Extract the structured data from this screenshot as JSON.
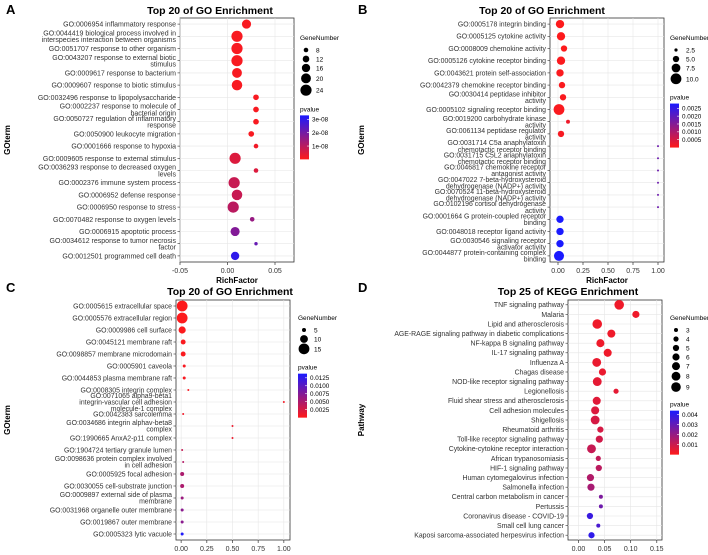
{
  "chart_data": [
    {
      "panel": "A",
      "type": "scatter",
      "title": "Top 20 of GO Enrichment",
      "xlabel": "RichFactor",
      "ylabel": "GOterm",
      "xlim": [
        -0.05,
        0.07
      ],
      "xticks": [
        "-0.05",
        "0.00",
        "0.05"
      ],
      "xtick_values": [
        -0.05,
        0.0,
        0.05
      ],
      "terms": [
        "GO:0006954 inflammatory response",
        "GO:0044419 biological process involved in interspecies interaction between organisms",
        "GO:0051707 response to other organism",
        "GO:0043207 response to external biotic stimulus",
        "GO:0009617 response to bacterium",
        "GO:0009607 response to biotic stimulus",
        "GO:0032496 response to lipopolysaccharide",
        "GO:0002237 response to molecule of bacterial origin",
        "GO:0050727 regulation of inflammatory response",
        "GO:0050900 leukocyte migration",
        "GO:0001666 response to hypoxia",
        "GO:0009605 response to external stimulus",
        "GO:0036293 response to decreased oxygen levels",
        "GO:0002376 immune system process",
        "GO:0006952 defense response",
        "GO:0006950 response to stress",
        "GO:0070482 response to oxygen levels",
        "GO:0006915 apoptotic process",
        "GO:0034612 response to tumor necrosis factor",
        "GO:0012501 programmed cell death"
      ],
      "rich_factor": [
        0.02,
        0.01,
        0.01,
        0.01,
        0.01,
        0.01,
        0.03,
        0.03,
        0.03,
        0.025,
        0.03,
        0.008,
        0.03,
        0.007,
        0.01,
        0.006,
        0.026,
        0.008,
        0.03,
        0.008
      ],
      "gene_number": [
        18,
        24,
        24,
        24,
        20,
        22,
        10,
        10,
        10,
        10,
        8,
        24,
        8,
        24,
        22,
        24,
        8,
        18,
        6,
        16
      ],
      "pvalue": [
        1e-09,
        1e-09,
        1e-09,
        1e-09,
        1e-09,
        1e-09,
        1e-09,
        1e-09,
        1e-09,
        1e-09,
        2e-09,
        5e-09,
        5e-09,
        8e-09,
        8e-09,
        1e-08,
        1.5e-08,
        1.8e-08,
        2.2e-08,
        3e-08
      ],
      "size_legend": {
        "title": "GeneNumber",
        "labels": [
          "8",
          "12",
          "16",
          "20",
          "24"
        ],
        "values": [
          8,
          12,
          16,
          20,
          24
        ]
      },
      "color_legend": {
        "title": "pvalue",
        "labels": [
          "3e-08",
          "2e-08",
          "1e-08"
        ],
        "values": [
          3e-08,
          2e-08,
          1e-08
        ],
        "range": [
          0,
          3.3e-08
        ]
      }
    },
    {
      "panel": "B",
      "type": "scatter",
      "title": "Top 20 of GO Enrichment",
      "xlabel": "RichFactor",
      "ylabel": "GOterm",
      "xlim": [
        -0.08,
        1.06
      ],
      "xticks": [
        "0.00",
        "0.25",
        "0.50",
        "0.75",
        "1.00"
      ],
      "xtick_values": [
        0,
        0.25,
        0.5,
        0.75,
        1.0
      ],
      "terms": [
        "GO:0005178 integrin binding",
        "GO:0005125 cytokine activity",
        "GO:0008009 chemokine activity",
        "GO:0005126 cytokine receptor binding",
        "GO:0043621 protein self-association",
        "GO:0042379 chemokine receptor binding",
        "GO:0030414 peptidase inhibitor activity",
        "GO:0005102 signaling receptor binding",
        "GO:0019200 carbohydrate kinase activity",
        "GO:0061134 peptidase regulator activity",
        "GO:0031714 C5a anaphylatoxin chemotactic receptor binding",
        "GO:0031715 C5L2 anaphylatoxin chemotactic receptor binding",
        "GO:0046817 chemokine receptor antagonist activity",
        "GO:0047022 7-beta-hydroxysteroid dehydrogenase (NADP+) activity",
        "GO:0070524 11-beta-hydroxysteroid dehydrogenase (NADP+) activity",
        "GO:0102196 cortisol dehydrogenase activity",
        "GO:0001664 G protein-coupled receptor binding",
        "GO:0048018 receptor ligand activity",
        "GO:0030546 signaling receptor activator activity",
        "GO:0044877 protein-containing complex binding"
      ],
      "rich_factor": [
        0.02,
        0.03,
        0.06,
        0.03,
        0.02,
        0.04,
        0.05,
        0.01,
        0.1,
        0.03,
        1.0,
        1.0,
        1.0,
        1.0,
        1.0,
        1.0,
        0.02,
        0.02,
        0.02,
        0.01
      ],
      "gene_number": [
        7,
        7,
        5,
        7,
        6,
        5,
        5,
        10,
        3,
        5,
        1,
        1,
        1,
        1,
        1,
        1,
        6,
        6,
        6,
        9
      ],
      "pvalue": [
        2e-05,
        2e-05,
        3e-05,
        5e-05,
        5e-05,
        6e-05,
        6e-05,
        6e-05,
        0.0002,
        0.0001,
        0.0018,
        0.0018,
        0.0018,
        0.0018,
        0.0018,
        0.0018,
        0.0028,
        0.0028,
        0.0028,
        0.0028
      ],
      "size_legend": {
        "title": "GeneNumber",
        "labels": [
          "2.5",
          "5.0",
          "7.5",
          "10.0"
        ],
        "values": [
          2.5,
          5.0,
          7.5,
          10.0
        ]
      },
      "color_legend": {
        "title": "pvalue",
        "labels": [
          "0.0025",
          "0.0020",
          "0.0015",
          "0.0010",
          "0.0005"
        ],
        "values": [
          0.0025,
          0.002,
          0.0015,
          0.001,
          0.0005
        ],
        "range": [
          0,
          0.0028
        ]
      }
    },
    {
      "panel": "C",
      "type": "scatter",
      "title": "Top 20 of GO Enrichment",
      "xlabel": "RichFactor",
      "ylabel": "GOterm",
      "xlim": [
        -0.05,
        1.06
      ],
      "xticks": [
        "0.00",
        "0.25",
        "0.50",
        "0.75",
        "1.00"
      ],
      "xtick_values": [
        0,
        0.25,
        0.5,
        0.75,
        1.0
      ],
      "terms": [
        "GO:0005615 extracellular space",
        "GO:0005576 extracellular region",
        "GO:0009986 cell surface",
        "GO:0045121 membrane raft",
        "GO:0098857 membrane microdomain",
        "GO:0005901 caveola",
        "GO:0044853 plasma membrane raft",
        "GO:0008305 integrin complex",
        "GO:0071065 alpha9-beta1 integrin-vascular cell adhesion molecule-1 complex",
        "GO:0042383 sarcolemma",
        "GO:0034686 integrin alphav-beta8 complex",
        "GO:1990665 AnxA2-p11 complex",
        "GO:1904724 tertiary granule lumen",
        "GO:0098636 protein complex involved in cell adhesion",
        "GO:0005925 focal adhesion",
        "GO:0030055 cell-substrate junction",
        "GO:0009897 external side of plasma membrane",
        "GO:0031968 organelle outer membrane",
        "GO:0019867 outer membrane",
        "GO:0005323 lytic vacuole"
      ],
      "rich_factor": [
        0.01,
        0.01,
        0.01,
        0.02,
        0.02,
        0.03,
        0.03,
        0.07,
        1.0,
        0.02,
        0.5,
        0.5,
        0.01,
        0.02,
        0.01,
        0.01,
        0.01,
        0.01,
        0.01,
        0.01
      ],
      "gene_number": [
        15,
        15,
        9,
        6,
        6,
        4,
        4,
        2,
        1,
        3,
        1,
        1,
        3,
        2,
        5,
        5,
        4,
        4,
        4,
        4
      ],
      "pvalue": [
        0.0001,
        0.0001,
        0.0002,
        0.0003,
        0.0003,
        0.0004,
        0.0004,
        0.0005,
        0.0008,
        0.0009,
        0.0012,
        0.0012,
        0.0035,
        0.0045,
        0.005,
        0.005,
        0.006,
        0.007,
        0.007,
        0.0135
      ],
      "size_legend": {
        "title": "GeneNumber",
        "labels": [
          "5",
          "10",
          "15"
        ],
        "values": [
          5,
          10,
          15
        ]
      },
      "color_legend": {
        "title": "pvalue",
        "labels": [
          "0.0125",
          "0.0100",
          "0.0075",
          "0.0050",
          "0.0025"
        ],
        "values": [
          0.0125,
          0.01,
          0.0075,
          0.005,
          0.0025
        ],
        "range": [
          0,
          0.0138
        ]
      }
    },
    {
      "panel": "D",
      "type": "scatter",
      "title": "Top 25 of KEGG Enrichment",
      "xlabel": "RichFactor",
      "ylabel": "Pathway",
      "xlim": [
        -0.02,
        0.16
      ],
      "xticks": [
        "0.00",
        "0.05",
        "0.10",
        "0.15"
      ],
      "xtick_values": [
        0,
        0.05,
        0.1,
        0.15
      ],
      "terms": [
        "TNF signaling pathway",
        "Malaria",
        "Lipid and atherosclerosis",
        "AGE-RAGE signaling pathway in diabetic complications",
        "NF-kappa B signaling pathway",
        "IL-17 signaling pathway",
        "Influenza A",
        "Chagas disease",
        "NOD-like receptor signaling pathway",
        "Legionellosis",
        "Fluid shear stress and atherosclerosis",
        "Cell adhesion molecules",
        "Shigellosis",
        "Rheumatoid arthritis",
        "Toll-like receptor signaling pathway",
        "Cytokine-cytokine receptor interaction",
        "African trypanosomiasis",
        "HIF-1 signaling pathway",
        "Human cytomegalovirus infection",
        "Salmonella infection",
        "Central carbon metabolism in cancer",
        "Pertussis",
        "Coronavirus disease - COVID-19",
        "Small cell lung cancer",
        "Kaposi sarcoma-associated herpesvirus infection"
      ],
      "rich_factor": [
        0.078,
        0.11,
        0.036,
        0.063,
        0.042,
        0.056,
        0.035,
        0.046,
        0.036,
        0.072,
        0.035,
        0.032,
        0.032,
        0.042,
        0.04,
        0.025,
        0.038,
        0.039,
        0.023,
        0.024,
        0.043,
        0.043,
        0.022,
        0.038,
        0.025
      ],
      "gene_number": [
        9,
        6,
        9,
        7,
        7,
        7,
        8,
        6,
        8,
        4,
        7,
        7,
        8,
        5,
        6,
        8,
        4,
        5,
        6,
        6,
        3,
        3,
        5,
        3,
        5
      ],
      "pvalue": [
        0.0003,
        0.0003,
        0.0003,
        0.0003,
        0.0003,
        0.0003,
        0.0004,
        0.0004,
        0.0005,
        0.0005,
        0.0006,
        0.0007,
        0.0008,
        0.0008,
        0.0009,
        0.0011,
        0.0012,
        0.0013,
        0.0015,
        0.0017,
        0.0025,
        0.0028,
        0.0038,
        0.0035,
        0.004
      ],
      "size_legend": {
        "title": "GeneNumber",
        "labels": [
          "3",
          "4",
          "5",
          "6",
          "7",
          "8",
          "9"
        ],
        "values": [
          3,
          4,
          5,
          6,
          7,
          8,
          9
        ]
      },
      "color_legend": {
        "title": "pvalue",
        "labels": [
          "0.004",
          "0.003",
          "0.002",
          "0.001"
        ],
        "values": [
          0.004,
          0.003,
          0.002,
          0.001
        ],
        "range": [
          0,
          0.0044
        ]
      }
    }
  ],
  "colors": {
    "low_pvalue": "#ff1a1a",
    "high_pvalue": "#1a1aff",
    "grid": "#e6e6e6",
    "panel_border": "#333333"
  }
}
